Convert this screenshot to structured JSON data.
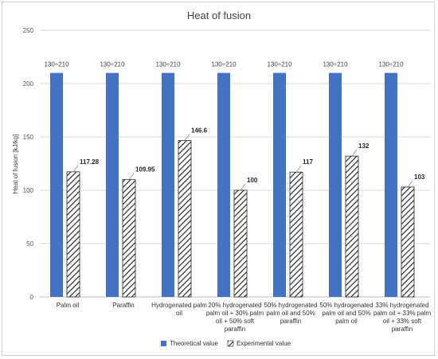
{
  "chart_data": {
    "type": "bar",
    "title": "Heat of fusion",
    "ylabel": "Heat of fusion [kJ/kg]",
    "xlabel": "",
    "ylim": [
      0,
      250
    ],
    "yticks": [
      0,
      50,
      100,
      150,
      200,
      250
    ],
    "grid": true,
    "legend_position": "bottom",
    "categories": [
      [
        "Palm oil"
      ],
      [
        "Paraffin"
      ],
      [
        "Hydrogenated palm",
        "oil"
      ],
      [
        "20% hydrogenated",
        "palm oil + 30% palm",
        "oil + 50% soft",
        "paraffin"
      ],
      [
        "50% hydrogenated",
        "palm oil and 50%",
        "paraffin"
      ],
      [
        "50% hydrogenated",
        "palm oil and 50%",
        "palm oil"
      ],
      [
        "33% hydrogenated",
        "palm oil + 33% palm",
        "oil + 33% soft",
        "paraffin"
      ]
    ],
    "series": [
      {
        "name": "Theoretical value",
        "color": "#4472c4",
        "pattern": "solid",
        "values": [
          210,
          210,
          210,
          210,
          210,
          210,
          210
        ],
        "labels": [
          "130÷210",
          "130÷210",
          "130÷210",
          "130÷210",
          "130÷210",
          "130÷210",
          "130÷210"
        ]
      },
      {
        "name": "Experimental value",
        "color": "#333333",
        "pattern": "diagonal-hatch",
        "values": [
          117.28,
          109.95,
          146.6,
          100,
          117,
          132,
          103
        ],
        "labels": [
          "117.28",
          "109.95",
          "146.6",
          "100",
          "117",
          "132",
          "103"
        ]
      }
    ]
  }
}
